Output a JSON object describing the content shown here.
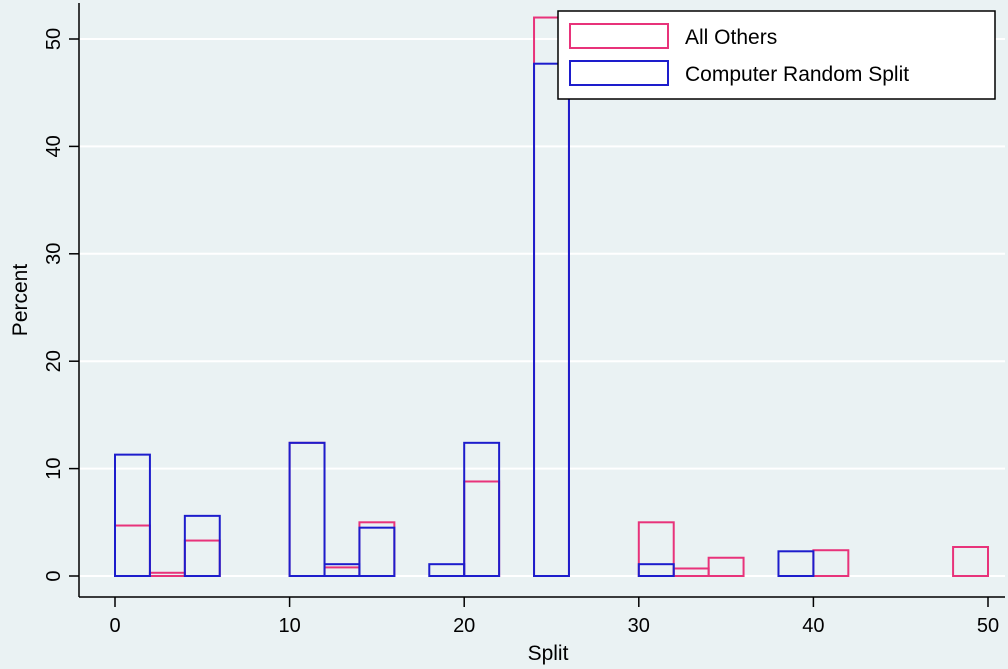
{
  "chart_data": {
    "type": "bar",
    "xlabel": "Split",
    "ylabel": "Percent",
    "xlim": [
      0,
      50
    ],
    "ylim": [
      0,
      52
    ],
    "x_ticks": [
      0,
      10,
      20,
      30,
      40,
      50
    ],
    "y_ticks": [
      0,
      10,
      20,
      30,
      40,
      50
    ],
    "bin_width": 2,
    "grid": true,
    "legend_position": "top-right",
    "series": [
      {
        "name": "All Others",
        "color": "#e8337a",
        "bins": [
          {
            "start": 0,
            "value": 4.7
          },
          {
            "start": 2,
            "value": 0.3
          },
          {
            "start": 4,
            "value": 3.3
          },
          {
            "start": 10,
            "value": 12.4
          },
          {
            "start": 12,
            "value": 0.8
          },
          {
            "start": 14,
            "value": 5.0
          },
          {
            "start": 20,
            "value": 8.8
          },
          {
            "start": 24,
            "value": 52.0
          },
          {
            "start": 30,
            "value": 5.0
          },
          {
            "start": 32,
            "value": 0.7
          },
          {
            "start": 34,
            "value": 1.7
          },
          {
            "start": 40,
            "value": 2.4
          },
          {
            "start": 48,
            "value": 2.7
          }
        ]
      },
      {
        "name": "Computer Random Split",
        "color": "#1d1dcc",
        "bins": [
          {
            "start": 0,
            "value": 11.3
          },
          {
            "start": 4,
            "value": 5.6
          },
          {
            "start": 10,
            "value": 12.4
          },
          {
            "start": 12,
            "value": 1.1
          },
          {
            "start": 14,
            "value": 4.5
          },
          {
            "start": 18,
            "value": 1.1
          },
          {
            "start": 20,
            "value": 12.4
          },
          {
            "start": 24,
            "value": 47.7
          },
          {
            "start": 30,
            "value": 1.1
          },
          {
            "start": 38,
            "value": 2.3
          }
        ]
      }
    ]
  }
}
